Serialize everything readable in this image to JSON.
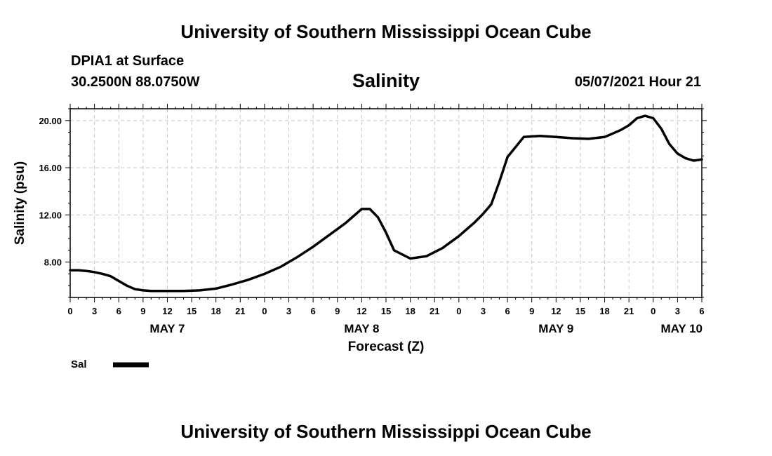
{
  "header": {
    "title": "University of Southern Mississippi Ocean Cube",
    "station": "DPIA1 at Surface",
    "coords": "30.2500N  88.0750W",
    "variable": "Salinity",
    "datetime": "05/07/2021 Hour 21"
  },
  "footer": {
    "title": "University of Southern Mississippi Ocean Cube"
  },
  "chart_data": {
    "type": "line",
    "title": "Salinity",
    "xlabel": "Forecast (Z)",
    "ylabel": "Salinity (psu)",
    "xlim": [
      0,
      78
    ],
    "ylim": [
      5.0,
      21.0
    ],
    "grid": true,
    "yticks": [
      8.0,
      12.0,
      16.0,
      20.0
    ],
    "ytick_labels": [
      "8.00",
      "12.00",
      "16.00",
      "20.00"
    ],
    "xtick_labels": [
      "0",
      "3",
      "6",
      "9",
      "12",
      "15",
      "18",
      "21",
      "0",
      "3",
      "6",
      "9",
      "12",
      "15",
      "18",
      "21",
      "0",
      "3",
      "6",
      "9",
      "12",
      "15",
      "18",
      "21",
      "0",
      "3",
      "6"
    ],
    "date_labels": [
      {
        "label": "MAY 7",
        "hour": 12
      },
      {
        "label": "MAY 8",
        "hour": 36
      },
      {
        "label": "MAY 9",
        "hour": 60
      },
      {
        "label": "MAY 10",
        "hour": 78
      }
    ],
    "legend": {
      "position": "bottom-left",
      "entries": [
        "Sal"
      ]
    },
    "series": [
      {
        "name": "Sal",
        "color": "#000000",
        "x": [
          0,
          1,
          2,
          3,
          4,
          5,
          6,
          7,
          8,
          9,
          10,
          12,
          14,
          16,
          18,
          20,
          22,
          24,
          26,
          28,
          30,
          32,
          34,
          35,
          36,
          37,
          38,
          39,
          40,
          42,
          44,
          46,
          48,
          49,
          50,
          51,
          52,
          53,
          54,
          56,
          58,
          60,
          62,
          64,
          66,
          68,
          69,
          70,
          71,
          72,
          73,
          74,
          75,
          76,
          77,
          78
        ],
        "values": [
          7.3,
          7.3,
          7.25,
          7.15,
          7.0,
          6.8,
          6.4,
          6.0,
          5.7,
          5.6,
          5.55,
          5.55,
          5.55,
          5.6,
          5.75,
          6.1,
          6.5,
          7.0,
          7.6,
          8.4,
          9.3,
          10.3,
          11.3,
          11.9,
          12.5,
          12.5,
          11.8,
          10.5,
          9.0,
          8.3,
          8.5,
          9.2,
          10.2,
          10.8,
          11.4,
          12.1,
          12.9,
          14.8,
          16.9,
          18.6,
          18.7,
          18.6,
          18.5,
          18.45,
          18.6,
          19.2,
          19.6,
          20.2,
          20.4,
          20.2,
          19.3,
          18.0,
          17.2,
          16.8,
          16.6,
          16.7
        ]
      }
    ]
  }
}
